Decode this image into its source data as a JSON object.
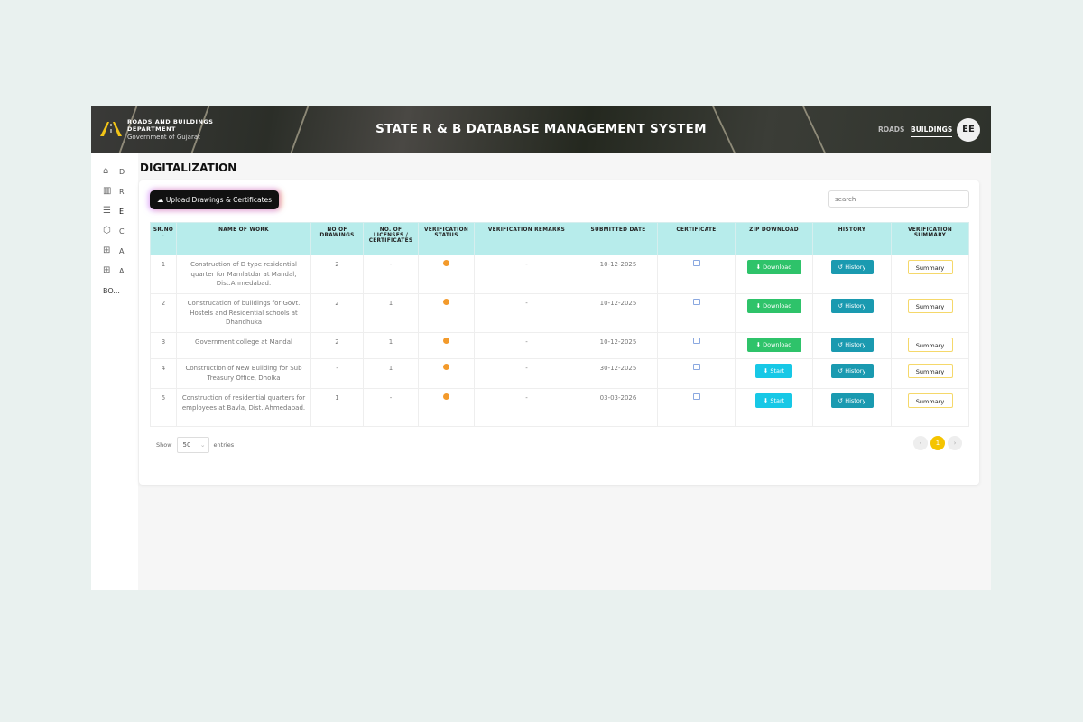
{
  "header": {
    "dept": "ROADS AND BUILDINGS DEPARTMENT",
    "gov": "Government of Gujarat",
    "title": "STATE R & B DATABASE MANAGEMENT SYSTEM",
    "nav": [
      "ROADS",
      "BUILDINGS"
    ],
    "active_nav": "BUILDINGS",
    "avatar": "EE"
  },
  "sidebar": {
    "items": [
      {
        "icon": "home-icon",
        "label": "D"
      },
      {
        "icon": "chart-icon",
        "label": "R"
      },
      {
        "icon": "list-icon",
        "label": "E"
      },
      {
        "icon": "cube-icon",
        "label": "C"
      },
      {
        "icon": "plus-box-icon",
        "label": "A"
      },
      {
        "icon": "plus-box-icon",
        "label": "A"
      }
    ],
    "footer": "BO..."
  },
  "page": {
    "title": "DIGITALIZATION",
    "upload_label": "Upload Drawings & Certificates",
    "search_placeholder": "search"
  },
  "table": {
    "headers": [
      "SR.NO .",
      "NAME OF WORK",
      "NO OF DRAWINGS",
      "NO. OF LICENSES / CERTIFICATES",
      "VERIFICATION STATUS",
      "VERIFICATION REMARKS",
      "SUBMITTED DATE",
      "CERTIFICATE",
      "ZIP DOWNLOAD",
      "HISTORY",
      "VERIFICATION SUMMARY"
    ],
    "rows": [
      {
        "sr": "1",
        "name": "Construction of D type residential quarter for Mamlatdar at Mandal, Dist.Ahmedabad.",
        "drawings": "2",
        "licenses": "-",
        "remarks": "-",
        "date": "10-12-2025",
        "zip": "Download"
      },
      {
        "sr": "2",
        "name": "Construcation of buildings for Govt. Hostels and Residential schools at Dhandhuka",
        "drawings": "2",
        "licenses": "1",
        "remarks": "-",
        "date": "10-12-2025",
        "zip": "Download"
      },
      {
        "sr": "3",
        "name": "Government college at Mandal",
        "drawings": "2",
        "licenses": "1",
        "remarks": "-",
        "date": "10-12-2025",
        "zip": "Download"
      },
      {
        "sr": "4",
        "name": "Construction of New Building for Sub Treasury Office, Dholka",
        "drawings": "-",
        "licenses": "1",
        "remarks": "-",
        "date": "30-12-2025",
        "zip": "Start"
      },
      {
        "sr": "5",
        "name": "Construction of residential quarters for employees at Bavla, Dist. Ahmedabad.",
        "drawings": "1",
        "licenses": "-",
        "remarks": "-",
        "date": "03-03-2026",
        "zip": "Start"
      }
    ],
    "history_label": "History",
    "summary_label": "Summary",
    "status_color": "#f39a2b"
  },
  "footer": {
    "show": "Show",
    "entries_value": "50",
    "entries": "entries",
    "prev": "‹",
    "page": "1",
    "next": "›"
  }
}
